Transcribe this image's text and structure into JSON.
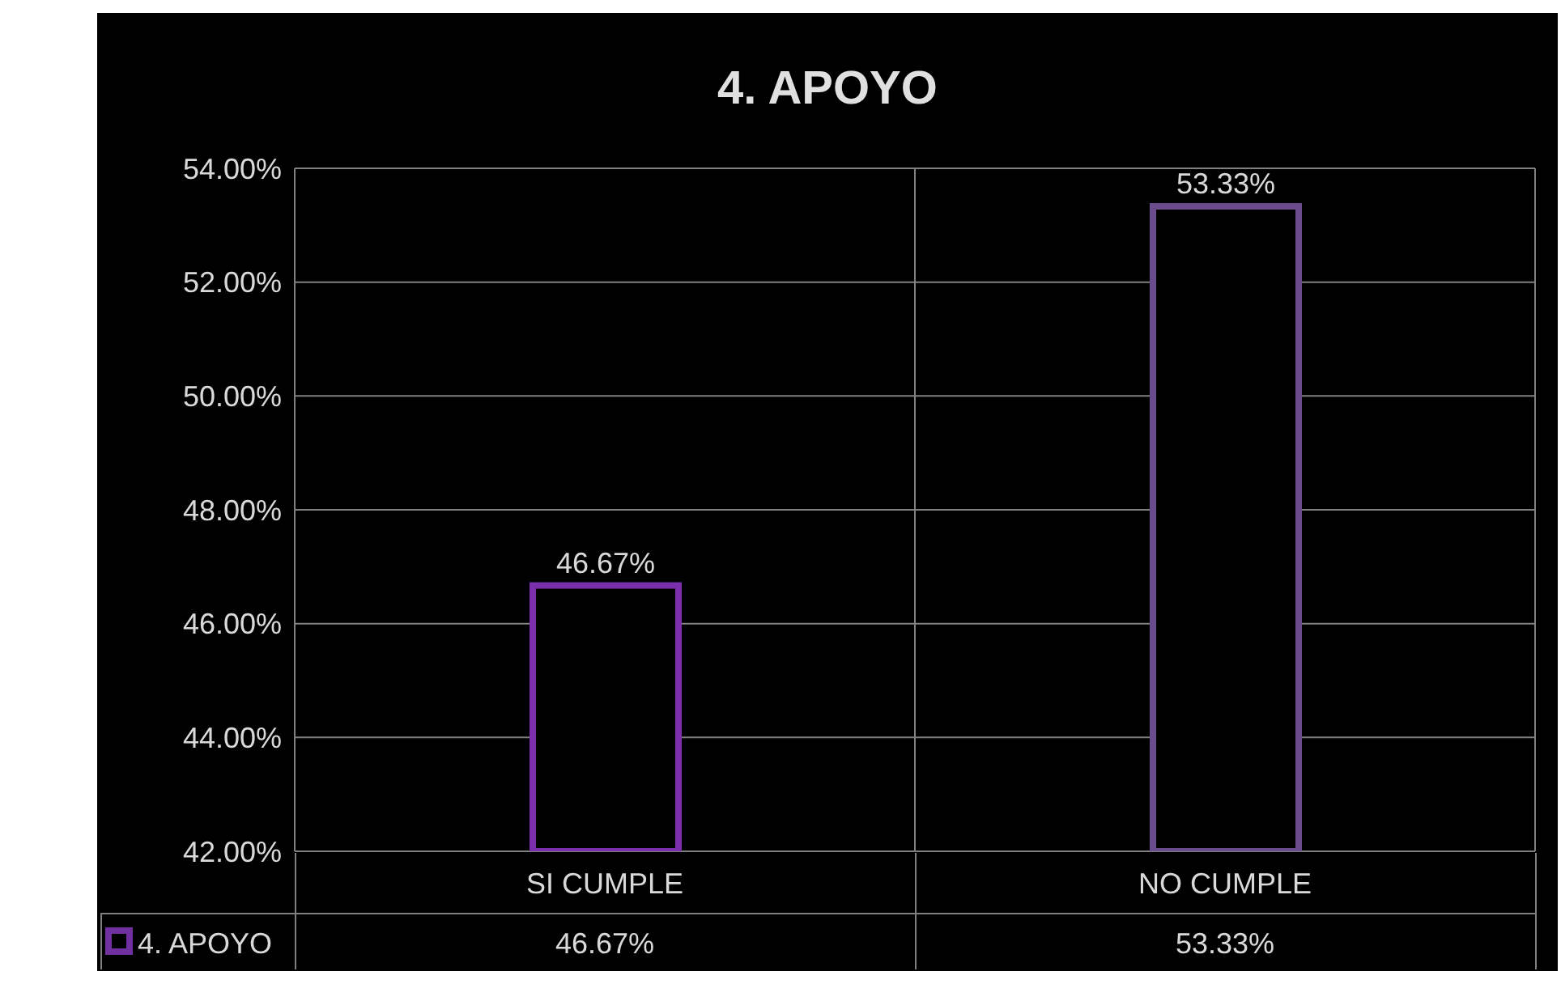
{
  "chart_data": {
    "type": "bar",
    "title": "4. APOYO",
    "categories": [
      "SI CUMPLE",
      "NO CUMPLE"
    ],
    "series": [
      {
        "name": "4. APOYO",
        "color": "#7030a0",
        "colors": [
          "#7b2fad",
          "#6a4c8c"
        ],
        "values": [
          46.67,
          53.33
        ],
        "value_labels": [
          "46.67%",
          "53.33%"
        ]
      }
    ],
    "ylim": [
      42,
      54
    ],
    "yticks": [
      {
        "value": 42,
        "label": "42.00%"
      },
      {
        "value": 44,
        "label": "44.00%"
      },
      {
        "value": 46,
        "label": "46.00%"
      },
      {
        "value": 48,
        "label": "48.00%"
      },
      {
        "value": 50,
        "label": "50.00%"
      },
      {
        "value": 52,
        "label": "52.00%"
      },
      {
        "value": 54,
        "label": "54.00%"
      }
    ],
    "grid": "y",
    "legend": "bottom left"
  }
}
